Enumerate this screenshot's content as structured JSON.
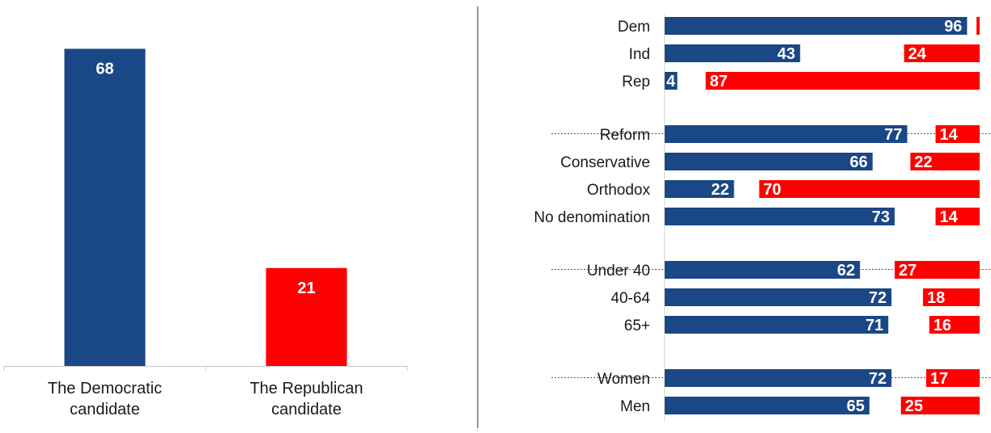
{
  "colors": {
    "dem": "#1a4785",
    "rep": "#ff0000",
    "axis": "#c8c8c8",
    "divider": "#333333"
  },
  "chart_data": [
    {
      "type": "bar",
      "categories": [
        [
          "The Democratic",
          "candidate"
        ],
        [
          "The Republican",
          "candidate"
        ]
      ],
      "values": [
        68,
        21
      ],
      "ylim": [
        0,
        75
      ],
      "grid": false
    },
    {
      "type": "bar",
      "orientation": "horizontal",
      "series": [
        {
          "color": "#1a4785"
        },
        {
          "color": "#ff0000"
        }
      ],
      "xlim": [
        0,
        100
      ],
      "groups": [
        {
          "rows": [
            {
              "label": "Dem",
              "values": [
                96,
                1
              ]
            },
            {
              "label": "Ind",
              "values": [
                43,
                24
              ]
            },
            {
              "label": "Rep",
              "values": [
                4,
                87
              ]
            }
          ]
        },
        {
          "rows": [
            {
              "label": "Reform",
              "values": [
                77,
                14
              ]
            },
            {
              "label": "Conservative",
              "values": [
                66,
                22
              ]
            },
            {
              "label": "Orthodox",
              "values": [
                22,
                70
              ]
            },
            {
              "label": "No denomination",
              "values": [
                73,
                14
              ]
            }
          ]
        },
        {
          "rows": [
            {
              "label": "Under 40",
              "values": [
                62,
                27
              ]
            },
            {
              "label": "40-64",
              "values": [
                72,
                18
              ]
            },
            {
              "label": "65+",
              "values": [
                71,
                16
              ]
            }
          ]
        },
        {
          "rows": [
            {
              "label": "Women",
              "values": [
                72,
                17
              ]
            },
            {
              "label": "Men",
              "values": [
                65,
                25
              ]
            }
          ]
        }
      ]
    }
  ]
}
